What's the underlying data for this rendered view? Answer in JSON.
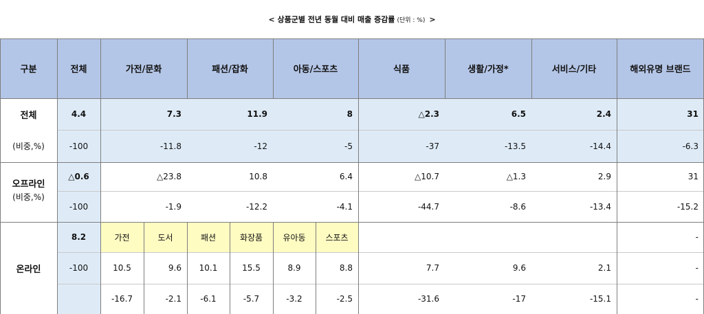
{
  "title": {
    "main": "<  상품군별 전년 동월 대비 매출 증감률",
    "unit": "(단위 : %)",
    "close": ">"
  },
  "header": [
    "구분",
    "전체",
    "가전/문화",
    "패션/잡화",
    "아동/스포츠",
    "식품",
    "생활/가정*",
    "서비스/기타",
    "해외유명 브랜드"
  ],
  "total": {
    "label": "전체",
    "share_label": "(비중,%)",
    "values": [
      "4.4",
      "7.3",
      "11.9",
      "8",
      "△2.3",
      "6.5",
      "2.4",
      "31"
    ],
    "shares": [
      "-100",
      "-11.8",
      "-12",
      "-5",
      "-37",
      "-13.5",
      "-14.4",
      "-6.3"
    ]
  },
  "offline": {
    "label": "오프라인",
    "share_label": "(비중,%)",
    "values": [
      "△0.6",
      "△23.8",
      "10.8",
      "6.4",
      "△10.7",
      "△1.3",
      "2.9",
      "31"
    ],
    "shares": [
      "-100",
      "-1.9",
      "-12.2",
      "-4.1",
      "-44.7",
      "-8.6",
      "-13.4",
      "-15.2"
    ]
  },
  "online": {
    "label": "온라인",
    "total_value": "8.2",
    "total_share": "-100",
    "subheaders": [
      "가전",
      "도서",
      "패션",
      "화장품",
      "유아동",
      "스포츠"
    ],
    "sub_values": [
      "10.5",
      "9.6",
      "10.1",
      "15.5",
      "8.9",
      "8.8"
    ],
    "sub_shares": [
      "-16.7",
      "-2.1",
      "-6.1",
      "-5.7",
      "-3.2",
      "-2.5"
    ],
    "food": [
      "7.7",
      "-31.6"
    ],
    "living": [
      "9.6",
      "-17"
    ],
    "service": [
      "2.1",
      "-15.1"
    ],
    "overseas": [
      "-",
      "-",
      "-"
    ]
  }
}
